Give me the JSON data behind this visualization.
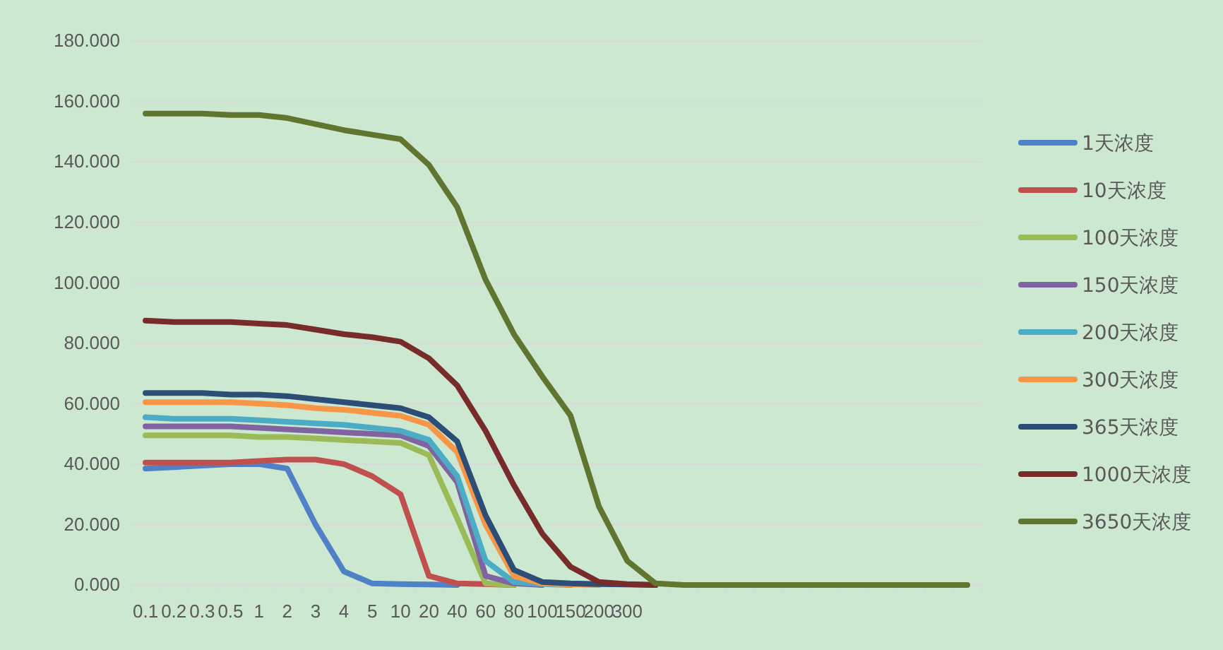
{
  "chart_data": {
    "type": "line",
    "categories": [
      "0.1",
      "0.2",
      "0.3",
      "0.5",
      "1",
      "2",
      "3",
      "4",
      "5",
      "10",
      "20",
      "40",
      "60",
      "80",
      "100",
      "150",
      "200",
      "300",
      null,
      null,
      null,
      null,
      null,
      null,
      null,
      null,
      null,
      null,
      null,
      null
    ],
    "ylim": [
      0,
      180
    ],
    "yticks": [
      {
        "value": 0,
        "label": "0.000"
      },
      {
        "value": 20,
        "label": "20.000"
      },
      {
        "value": 40,
        "label": "40.000"
      },
      {
        "value": 60,
        "label": "60.000"
      },
      {
        "value": 80,
        "label": "80.000"
      },
      {
        "value": 100,
        "label": "100.000"
      },
      {
        "value": 120,
        "label": "120.000"
      },
      {
        "value": 140,
        "label": "140.000"
      },
      {
        "value": 160,
        "label": "160.000"
      },
      {
        "value": 180,
        "label": "180.000"
      }
    ],
    "grid": "y",
    "legend": "right",
    "marker": "none",
    "line_style": "solid",
    "series": [
      {
        "name": "1天浓度",
        "color": "#4f81c7",
        "values": [
          38.5,
          39,
          39.5,
          40,
          40,
          38.5,
          20,
          4.5,
          0.5,
          0.3,
          0.2,
          0,
          null,
          null,
          null,
          null,
          null,
          null,
          null,
          null,
          null,
          null,
          null,
          null,
          null,
          null,
          null,
          null,
          null,
          null
        ]
      },
      {
        "name": "10天浓度",
        "color": "#c0504d",
        "values": [
          40.5,
          40.5,
          40.5,
          40.5,
          41,
          41.5,
          41.5,
          40,
          36,
          30,
          3,
          0.5,
          0.3,
          0,
          null,
          null,
          null,
          null,
          null,
          null,
          null,
          null,
          null,
          null,
          null,
          null,
          null,
          null,
          null,
          null
        ]
      },
      {
        "name": "100天浓度",
        "color": "#9bbb59",
        "values": [
          49.5,
          49.5,
          49.5,
          49.5,
          49,
          49,
          48.5,
          48,
          47.5,
          47,
          43,
          22,
          0.5,
          0,
          null,
          null,
          null,
          null,
          null,
          null,
          null,
          null,
          null,
          null,
          null,
          null,
          null,
          null,
          null,
          null
        ]
      },
      {
        "name": "150天浓度",
        "color": "#8064a2",
        "values": [
          52.5,
          52.5,
          52.5,
          52.5,
          52,
          51.5,
          51,
          50.5,
          50,
          49.5,
          46,
          34,
          3,
          0.5,
          0,
          null,
          null,
          null,
          null,
          null,
          null,
          null,
          null,
          null,
          null,
          null,
          null,
          null,
          null,
          null
        ]
      },
      {
        "name": "200天浓度",
        "color": "#4bacc6",
        "values": [
          55.5,
          55,
          55,
          55,
          54.5,
          54,
          53.5,
          53,
          52,
          51,
          48,
          36,
          8,
          1,
          0.3,
          0,
          null,
          null,
          null,
          null,
          null,
          null,
          null,
          null,
          null,
          null,
          null,
          null,
          null,
          null
        ]
      },
      {
        "name": "300天浓度",
        "color": "#f79646",
        "values": [
          60.5,
          60.5,
          60.5,
          60.5,
          60,
          59.5,
          58.5,
          58,
          57,
          56,
          53,
          44,
          20,
          3,
          0.5,
          0.2,
          0,
          null,
          null,
          null,
          null,
          null,
          null,
          null,
          null,
          null,
          null,
          null,
          null,
          null
        ]
      },
      {
        "name": "365天浓度",
        "color": "#2c4d75",
        "values": [
          63.5,
          63.5,
          63.5,
          63,
          63,
          62.5,
          61.5,
          60.5,
          59.5,
          58.5,
          55.5,
          47.5,
          23,
          5,
          1,
          0.5,
          0.3,
          0.2,
          0,
          null,
          null,
          null,
          null,
          null,
          null,
          null,
          null,
          null,
          null,
          null
        ]
      },
      {
        "name": "1000天浓度",
        "color": "#772c2a",
        "values": [
          87.5,
          87,
          87,
          87,
          86.5,
          86,
          84.5,
          83,
          82,
          80.5,
          75,
          66,
          51,
          33,
          17,
          6,
          1,
          0.3,
          0,
          null,
          null,
          null,
          null,
          null,
          null,
          null,
          null,
          null,
          null,
          null
        ]
      },
      {
        "name": "3650天浓度",
        "color": "#5f7530",
        "values": [
          156,
          156,
          156,
          155.5,
          155.5,
          154.5,
          152.5,
          150.5,
          149,
          147.5,
          139,
          125,
          101,
          83,
          69,
          56,
          26,
          8,
          0.5,
          0,
          0,
          0,
          0,
          0,
          0,
          0,
          0,
          0,
          0,
          0
        ]
      }
    ]
  }
}
